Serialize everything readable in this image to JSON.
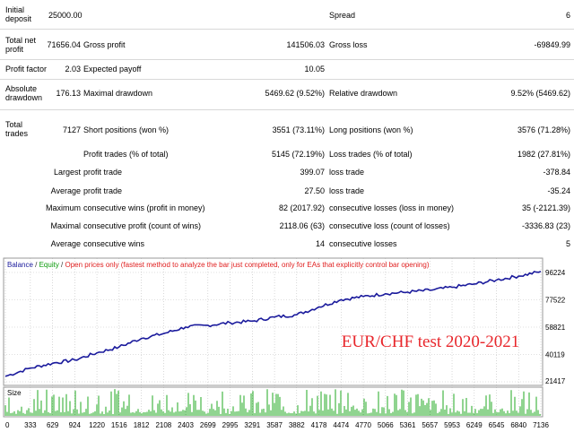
{
  "report": {
    "initial_deposit": {
      "label": "Initial deposit",
      "value": "25000.00"
    },
    "spread": {
      "label": "Spread",
      "value": "6"
    },
    "total_net_profit": {
      "label": "Total net profit",
      "value": "71656.04"
    },
    "gross_profit": {
      "label": "Gross profit",
      "value": "141506.03"
    },
    "gross_loss": {
      "label": "Gross loss",
      "value": "-69849.99"
    },
    "profit_factor": {
      "label": "Profit factor",
      "value": "2.03"
    },
    "expected_payoff": {
      "label": "Expected payoff",
      "value": "10.05"
    },
    "absolute_drawdown": {
      "label": "Absolute drawdown",
      "value": "176.13"
    },
    "maximal_drawdown": {
      "label": "Maximal drawdown",
      "value": "5469.62 (9.52%)"
    },
    "relative_drawdown": {
      "label": "Relative drawdown",
      "value": "9.52% (5469.62)"
    },
    "total_trades": {
      "label": "Total trades",
      "value": "7127"
    },
    "short_positions": {
      "label": "Short positions (won %)",
      "value": "3551 (73.11%)"
    },
    "long_positions": {
      "label": "Long positions (won %)",
      "value": "3576 (71.28%)"
    },
    "profit_trades": {
      "label": "Profit trades (% of total)",
      "value": "5145 (72.19%)"
    },
    "loss_trades": {
      "label": "Loss trades (% of total)",
      "value": "1982 (27.81%)"
    },
    "largest": {
      "label": "Largest",
      "profit_label": "profit trade",
      "profit_value": "399.07",
      "loss_label": "loss trade",
      "loss_value": "-378.84"
    },
    "average": {
      "label": "Average",
      "profit_label": "profit trade",
      "profit_value": "27.50",
      "loss_label": "loss trade",
      "loss_value": "-35.24"
    },
    "maximum": {
      "label": "Maximum",
      "wins_label": "consecutive wins (profit in money)",
      "wins_value": "82 (2017.92)",
      "losses_label": "consecutive losses (loss in money)",
      "losses_value": "35 (-2121.39)"
    },
    "maximal": {
      "label": "Maximal",
      "profit_label": "consecutive profit (count of wins)",
      "profit_value": "2118.06 (63)",
      "loss_label": "consecutive loss (count of losses)",
      "loss_value": "-3336.83 (23)"
    },
    "average_consecutive": {
      "label": "Average",
      "wins_label": "consecutive wins",
      "wins_value": "14",
      "losses_label": "consecutive losses",
      "losses_value": "5"
    }
  },
  "chart": {
    "legend": {
      "balance": "Balance",
      "sep1": " / ",
      "equity": "Equity",
      "sep2": " / ",
      "note": "Open prices only (fastest method to analyze the bar just completed, only for EAs that explicitly control bar opening)"
    },
    "annotation": "EUR/CHF test 2020-2021",
    "size_label": "Size",
    "colors": {
      "balance": "#1a1a9c",
      "equity": "#0a9a0a",
      "note": "#e02020",
      "annotation": "#e8262b",
      "size_bars": "#22aa22"
    }
  },
  "chart_data": {
    "type": "line",
    "series": [
      {
        "name": "Balance",
        "x": [
          0,
          333,
          629,
          924,
          1220,
          1516,
          1812,
          2108,
          2403,
          2699,
          2995,
          3291,
          3587,
          3882,
          4178,
          4474,
          4770,
          5066,
          5361,
          5657,
          5953,
          6249,
          6545,
          6840,
          7136
        ],
        "values": [
          25200,
          30800,
          34100,
          36400,
          41200,
          45300,
          51100,
          54400,
          58900,
          60100,
          61800,
          62900,
          65700,
          67300,
          72600,
          77600,
          79700,
          81700,
          82800,
          84100,
          86100,
          88300,
          91100,
          93700,
          96900
        ]
      }
    ],
    "x_ticks": [
      "0",
      "333",
      "629",
      "924",
      "1220",
      "1516",
      "1812",
      "2108",
      "2403",
      "2699",
      "2995",
      "3291",
      "3587",
      "3882",
      "4178",
      "4474",
      "4770",
      "5066",
      "5361",
      "5657",
      "5953",
      "6249",
      "6545",
      "6840",
      "7136"
    ],
    "y_ticks": [
      "96224",
      "77522",
      "58821",
      "40119",
      "21417"
    ],
    "ylim": [
      21417,
      96224
    ],
    "xlim": [
      0,
      7136
    ],
    "grid": true,
    "legend": "top-left"
  }
}
